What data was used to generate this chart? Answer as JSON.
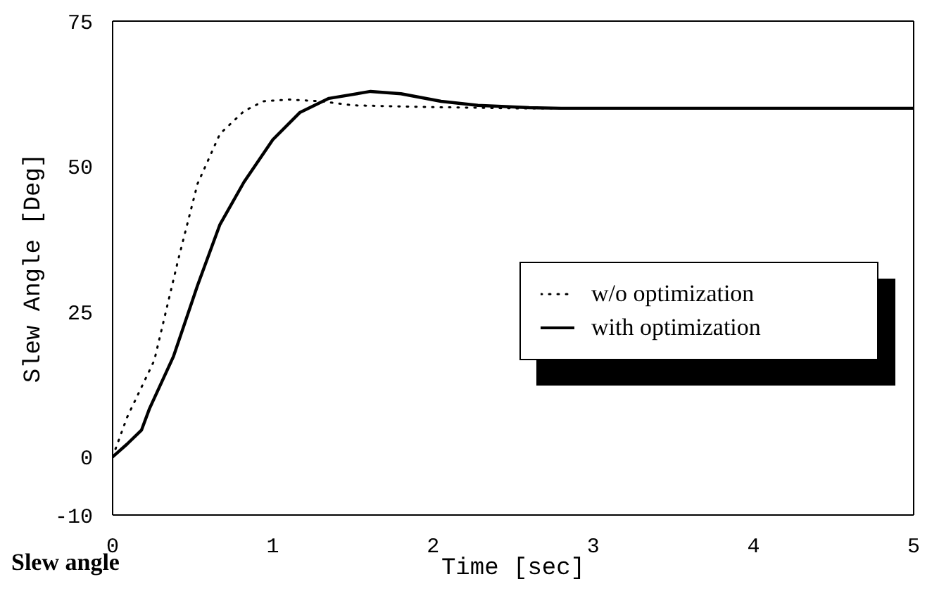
{
  "chart_data": {
    "type": "line",
    "xlabel": "Time [sec]",
    "ylabel": "Slew Angle [Deg]",
    "xlim": [
      0,
      5
    ],
    "xticks": [
      0,
      1,
      2,
      3,
      4,
      5
    ],
    "ylim": [
      -10,
      75
    ],
    "yticks": [
      -10,
      0,
      25,
      50,
      75
    ],
    "legend": "right",
    "annotations": [
      "Slew angle"
    ],
    "series": [
      {
        "name": "w/o optimization",
        "color": "#000000",
        "line_style": "dotted",
        "x": [
          0,
          0.09,
          0.26,
          0.41,
          0.53,
          0.67,
          0.82,
          0.94,
          1.1,
          1.3,
          1.5,
          2.0,
          2.5,
          3.0,
          4.0,
          5.0
        ],
        "values": [
          0,
          6.8,
          16.6,
          34,
          47,
          55.6,
          59.5,
          61.2,
          61.5,
          61.2,
          60.5,
          60.2,
          60,
          60,
          60,
          60
        ]
      },
      {
        "name": "with optimization",
        "color": "#000000",
        "line_style": "solid",
        "x": [
          0,
          0.09,
          0.18,
          0.23,
          0.38,
          0.53,
          0.67,
          0.82,
          1.0,
          1.17,
          1.35,
          1.61,
          1.8,
          2.05,
          2.28,
          2.6,
          2.8,
          3.5,
          4.0,
          5.0
        ],
        "values": [
          0,
          2.2,
          4.6,
          8.3,
          17.3,
          29.5,
          40,
          47.3,
          54.6,
          59.3,
          61.7,
          62.9,
          62.5,
          61.2,
          60.5,
          60.1,
          60,
          60,
          60,
          60
        ]
      }
    ]
  }
}
